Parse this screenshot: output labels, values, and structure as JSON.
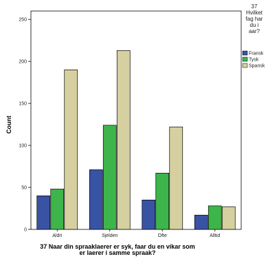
{
  "chart_data": {
    "type": "bar",
    "title": "",
    "xlabel_lines": [
      "37 Naar din spraaklaerer er syk, faar du en vikar som",
      "er laerer i samme spraak?"
    ],
    "ylabel": "Count",
    "categories": [
      "Aldri",
      "Sjelden",
      "Ofte",
      "Alltid"
    ],
    "ylim": [
      0,
      260
    ],
    "yticks": [
      0,
      50,
      100,
      150,
      200,
      250
    ],
    "series": [
      {
        "name": "Fransk",
        "color": "#3953a4",
        "values": [
          40,
          71,
          35,
          17
        ]
      },
      {
        "name": "Tysk",
        "color": "#3db54a",
        "values": [
          48,
          124,
          67,
          28
        ]
      },
      {
        "name": "Spansk",
        "color": "#d6cfa0",
        "values": [
          190,
          213,
          122,
          27
        ]
      }
    ],
    "legend_title_lines": [
      "37",
      "Hvilket",
      "fag har",
      "du i",
      "aar?"
    ],
    "legend_position": "right",
    "grid": false
  }
}
